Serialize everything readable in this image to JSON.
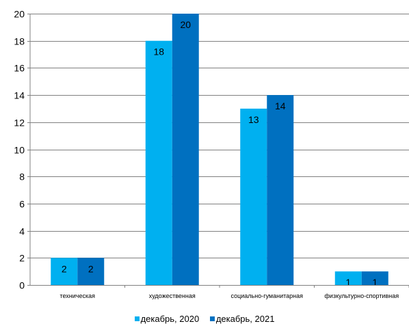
{
  "chart_data": {
    "type": "bar",
    "categories": [
      "техническая",
      "художественная",
      "социально-гуманитарная",
      "физкультурно-спортивная"
    ],
    "series": [
      {
        "name": "декабрь, 2020",
        "values": [
          2,
          18,
          13,
          1
        ],
        "color": "#00B0F0"
      },
      {
        "name": "декабрь, 2021",
        "values": [
          2,
          20,
          14,
          1
        ],
        "color": "#0070C0"
      }
    ],
    "ylim": [
      0,
      20
    ],
    "yticks": [
      0,
      2,
      4,
      6,
      8,
      10,
      12,
      14,
      16,
      18,
      20
    ],
    "grid": true,
    "legend_position": "bottom",
    "data_labels": true
  }
}
